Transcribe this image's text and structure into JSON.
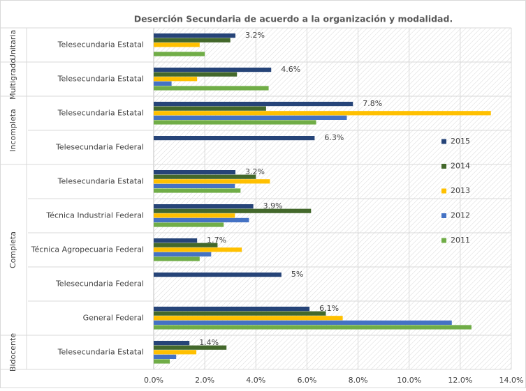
{
  "chart_data": {
    "type": "bar",
    "orientation": "horizontal",
    "title": "Deserción Secundaria de acuerdo a la organización y modalidad.",
    "groups": [
      {
        "name": "Unitaria",
        "categories": [
          "Telesecundaria Estatal"
        ]
      },
      {
        "name": "Multigrado",
        "categories": [
          "Telesecundaria Estatal"
        ]
      },
      {
        "name": "Incompleta",
        "categories": [
          "Telesecundaria Estatal",
          "Telesecundaria Federal"
        ]
      },
      {
        "name": "Completa",
        "categories": [
          "Telesecundaria Estatal",
          "Técnica Industrial Federal",
          "Técnica Agropecuaria Federal",
          "Telesecundaria Federal",
          "General Federal"
        ]
      },
      {
        "name": "Bidocente",
        "categories": [
          "Telesecundaria Estatal"
        ]
      }
    ],
    "series": [
      {
        "name": "2015",
        "color": "#264478",
        "values": [
          3.2,
          4.6,
          7.8,
          6.3,
          3.2,
          3.9,
          1.7,
          5,
          6.1,
          1.4
        ],
        "value_labels": [
          "3.2%",
          "4.6%",
          "7.8%",
          "6.3%",
          "3.2%",
          "3.9%",
          "1.7%",
          "5%",
          "6.1%",
          "1.4%"
        ]
      },
      {
        "name": "2014",
        "color": "#43682b",
        "values": [
          3.0,
          3.26,
          4.4,
          null,
          4.0,
          6.16,
          2.5,
          null,
          6.74,
          2.85
        ]
      },
      {
        "name": "2013",
        "color": "#ffc000",
        "values": [
          1.8,
          1.7,
          13.2,
          null,
          4.55,
          3.18,
          3.45,
          null,
          7.4,
          1.67
        ]
      },
      {
        "name": "2012",
        "color": "#4472c4",
        "values": [
          null,
          0.7,
          7.56,
          null,
          3.18,
          3.73,
          2.25,
          null,
          11.67,
          0.88
        ]
      },
      {
        "name": "2011",
        "color": "#70ad47",
        "values": [
          2.0,
          4.5,
          6.36,
          null,
          3.4,
          2.74,
          1.8,
          null,
          12.44,
          0.63
        ]
      }
    ],
    "xlim": [
      0,
      14
    ],
    "xticks": [
      {
        "value": 0,
        "label": "0.0%"
      },
      {
        "value": 2,
        "label": "2.0%"
      },
      {
        "value": 4,
        "label": "4.0%"
      },
      {
        "value": 6,
        "label": "6.0%"
      },
      {
        "value": 8,
        "label": "8.0%"
      },
      {
        "value": 10,
        "label": "10.0%"
      },
      {
        "value": 12,
        "label": "12.0%"
      },
      {
        "value": 14,
        "label": "14.0%"
      }
    ],
    "grid": true,
    "legend": "right"
  }
}
